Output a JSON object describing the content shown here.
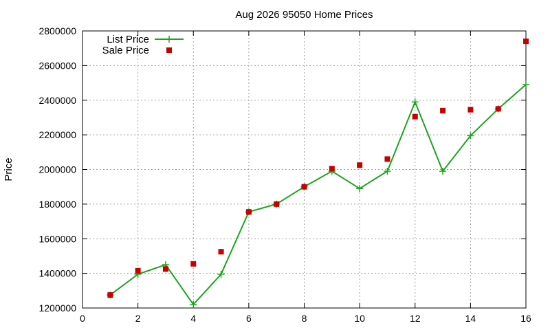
{
  "chart_data": {
    "type": "line",
    "title": "Aug 2026 95050 Home Prices",
    "xlabel": "",
    "ylabel": "Price",
    "xlim": [
      0,
      16
    ],
    "ylim": [
      1200000,
      2800000
    ],
    "xticks": [
      0,
      2,
      4,
      6,
      8,
      10,
      12,
      14,
      16
    ],
    "yticks": [
      1200000,
      1400000,
      1600000,
      1800000,
      2000000,
      2200000,
      2400000,
      2600000,
      2800000
    ],
    "grid": true,
    "legend": "top-left",
    "series": [
      {
        "name": "List Price",
        "style": "linespoints",
        "marker": "plus",
        "color": "#1aa51a",
        "x": [
          1,
          2,
          3,
          4,
          5,
          6,
          7,
          8,
          9,
          10,
          11,
          12,
          13,
          14,
          15,
          16
        ],
        "y": [
          1275000,
          1395000,
          1450000,
          1220000,
          1395000,
          1755000,
          1800000,
          1900000,
          1990000,
          1890000,
          1990000,
          2390000,
          1990000,
          2195000,
          2350000,
          2490000
        ]
      },
      {
        "name": "Sale Price",
        "style": "points",
        "marker": "square",
        "color": "#c80000",
        "x": [
          1,
          2,
          3,
          4,
          5,
          6,
          7,
          8,
          9,
          10,
          11,
          12,
          13,
          14,
          15,
          16
        ],
        "y": [
          1275000,
          1415000,
          1425000,
          1455000,
          1525000,
          1755000,
          1800000,
          1900000,
          2005000,
          2025000,
          2060000,
          2305000,
          2340000,
          2345000,
          2350000,
          2740000
        ]
      }
    ]
  }
}
